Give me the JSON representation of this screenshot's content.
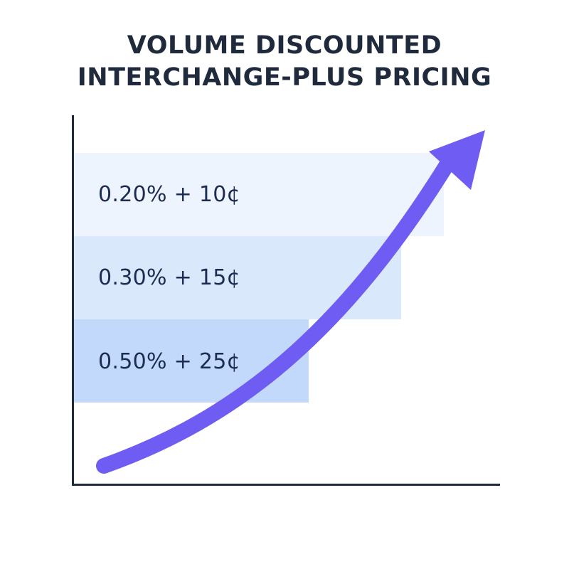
{
  "title": {
    "line1": "VOLUME DISCOUNTED",
    "line2": "INTERCHANGE-PLUS PRICING"
  },
  "tiers": [
    {
      "label": "0.20% + 10¢"
    },
    {
      "label": "0.30% + 15¢"
    },
    {
      "label": "0.50% + 25¢"
    }
  ],
  "colors": {
    "title": "#1f2a3c",
    "axis": "#1f2a3c",
    "tier_text": "#1c2c52",
    "band_top": "#eef4fd",
    "band_middle": "#dae8fb",
    "band_bottom": "#c3d9fb",
    "arrow": "#6f5cf2"
  },
  "icons": {
    "arrow": "trend-up-arrow-icon"
  }
}
